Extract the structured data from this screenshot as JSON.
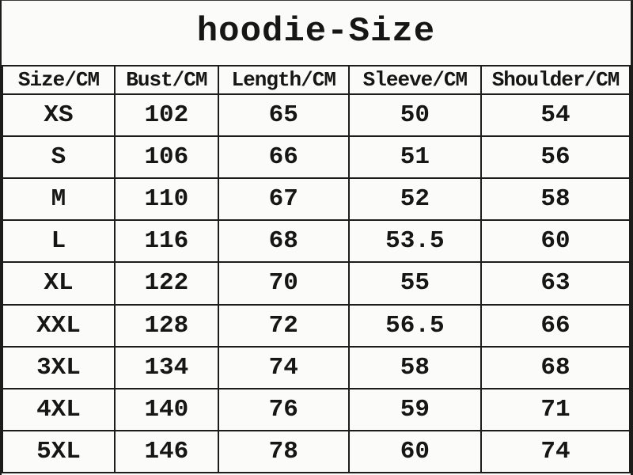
{
  "chart_data": {
    "type": "table",
    "title": "hoodie-Size",
    "columns": [
      "Size/CM",
      "Bust/CM",
      "Length/CM",
      "Sleeve/CM",
      "Shoulder/CM"
    ],
    "rows": [
      [
        "XS",
        "102",
        "65",
        "50",
        "54"
      ],
      [
        "S",
        "106",
        "66",
        "51",
        "56"
      ],
      [
        "M",
        "110",
        "67",
        "52",
        "58"
      ],
      [
        "L",
        "116",
        "68",
        "53.5",
        "60"
      ],
      [
        "XL",
        "122",
        "70",
        "55",
        "63"
      ],
      [
        "XXL",
        "128",
        "72",
        "56.5",
        "66"
      ],
      [
        "3XL",
        "134",
        "74",
        "58",
        "68"
      ],
      [
        "4XL",
        "140",
        "76",
        "59",
        "71"
      ],
      [
        "5XL",
        "146",
        "78",
        "60",
        "74"
      ]
    ],
    "layout": {
      "grid": "on",
      "text_color": "#161616",
      "border_color": "#1c1c1c",
      "background_color": "#fbfbfa"
    }
  }
}
